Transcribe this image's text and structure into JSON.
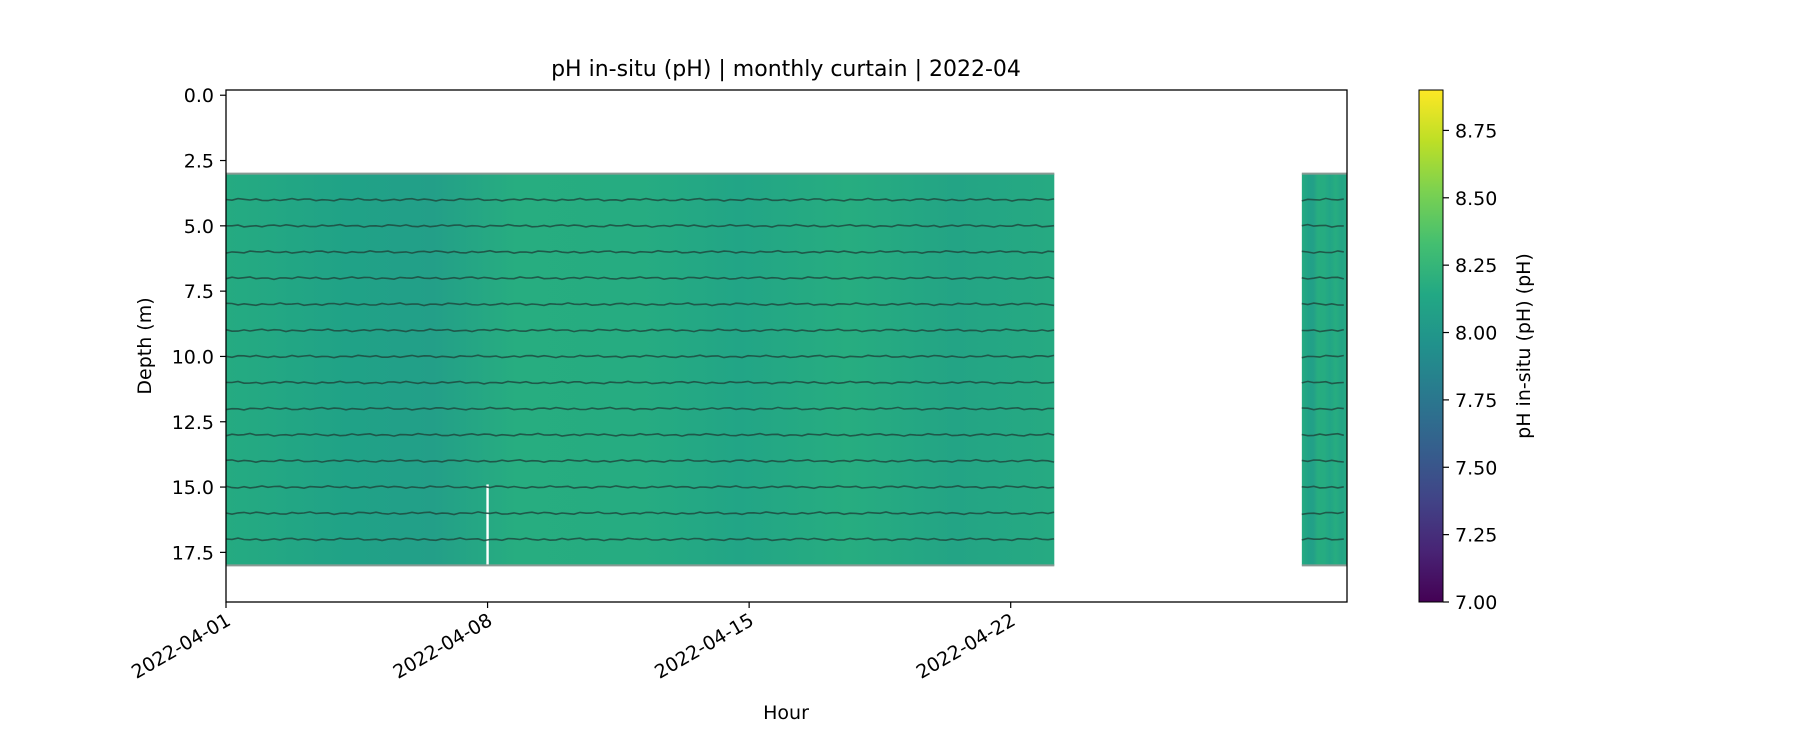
{
  "chart_data": {
    "type": "heatmap",
    "title": "pH in-situ (pH) | monthly curtain | 2022-04",
    "xlabel": "Hour",
    "ylabel": "Depth (m)",
    "colorbar_label": "pH in-situ (pH) (pH)",
    "x_range": [
      "2022-04-01",
      "2022-05-01"
    ],
    "x_ticks": [
      "2022-04-01",
      "2022-04-08",
      "2022-04-15",
      "2022-04-22"
    ],
    "ylim": [
      19.4,
      -0.2
    ],
    "y_ticks": [
      0.0,
      2.5,
      5.0,
      7.5,
      10.0,
      12.5,
      15.0,
      17.5
    ],
    "y_tick_labels": [
      "0.0",
      "2.5",
      "5.0",
      "7.5",
      "10.0",
      "12.5",
      "15.0",
      "17.5"
    ],
    "colorbar_range": [
      7.0,
      8.9
    ],
    "colorbar_ticks": [
      7.0,
      7.25,
      7.5,
      7.75,
      8.0,
      8.25,
      8.5,
      8.75
    ],
    "colorbar_tick_labels": [
      "7.00",
      "7.25",
      "7.50",
      "7.75",
      "8.00",
      "8.25",
      "8.50",
      "8.75"
    ],
    "colormap": "viridis",
    "depth_range": [
      3.0,
      18.0
    ],
    "sensor_depths": [
      4,
      5,
      6,
      7,
      8,
      9,
      10,
      11,
      12,
      13,
      14,
      15,
      16,
      17
    ],
    "data_segments": [
      {
        "start": "2022-04-01",
        "end": "2022-04-23 04:00",
        "ph": 8.1
      },
      {
        "start": "2022-04-29 19:00",
        "end": "2022-05-01",
        "ph": 8.1
      }
    ],
    "gaps": [
      {
        "time": "2022-04-08",
        "depth_from": 14.9,
        "depth_to": 18.0
      }
    ],
    "grid": false
  }
}
